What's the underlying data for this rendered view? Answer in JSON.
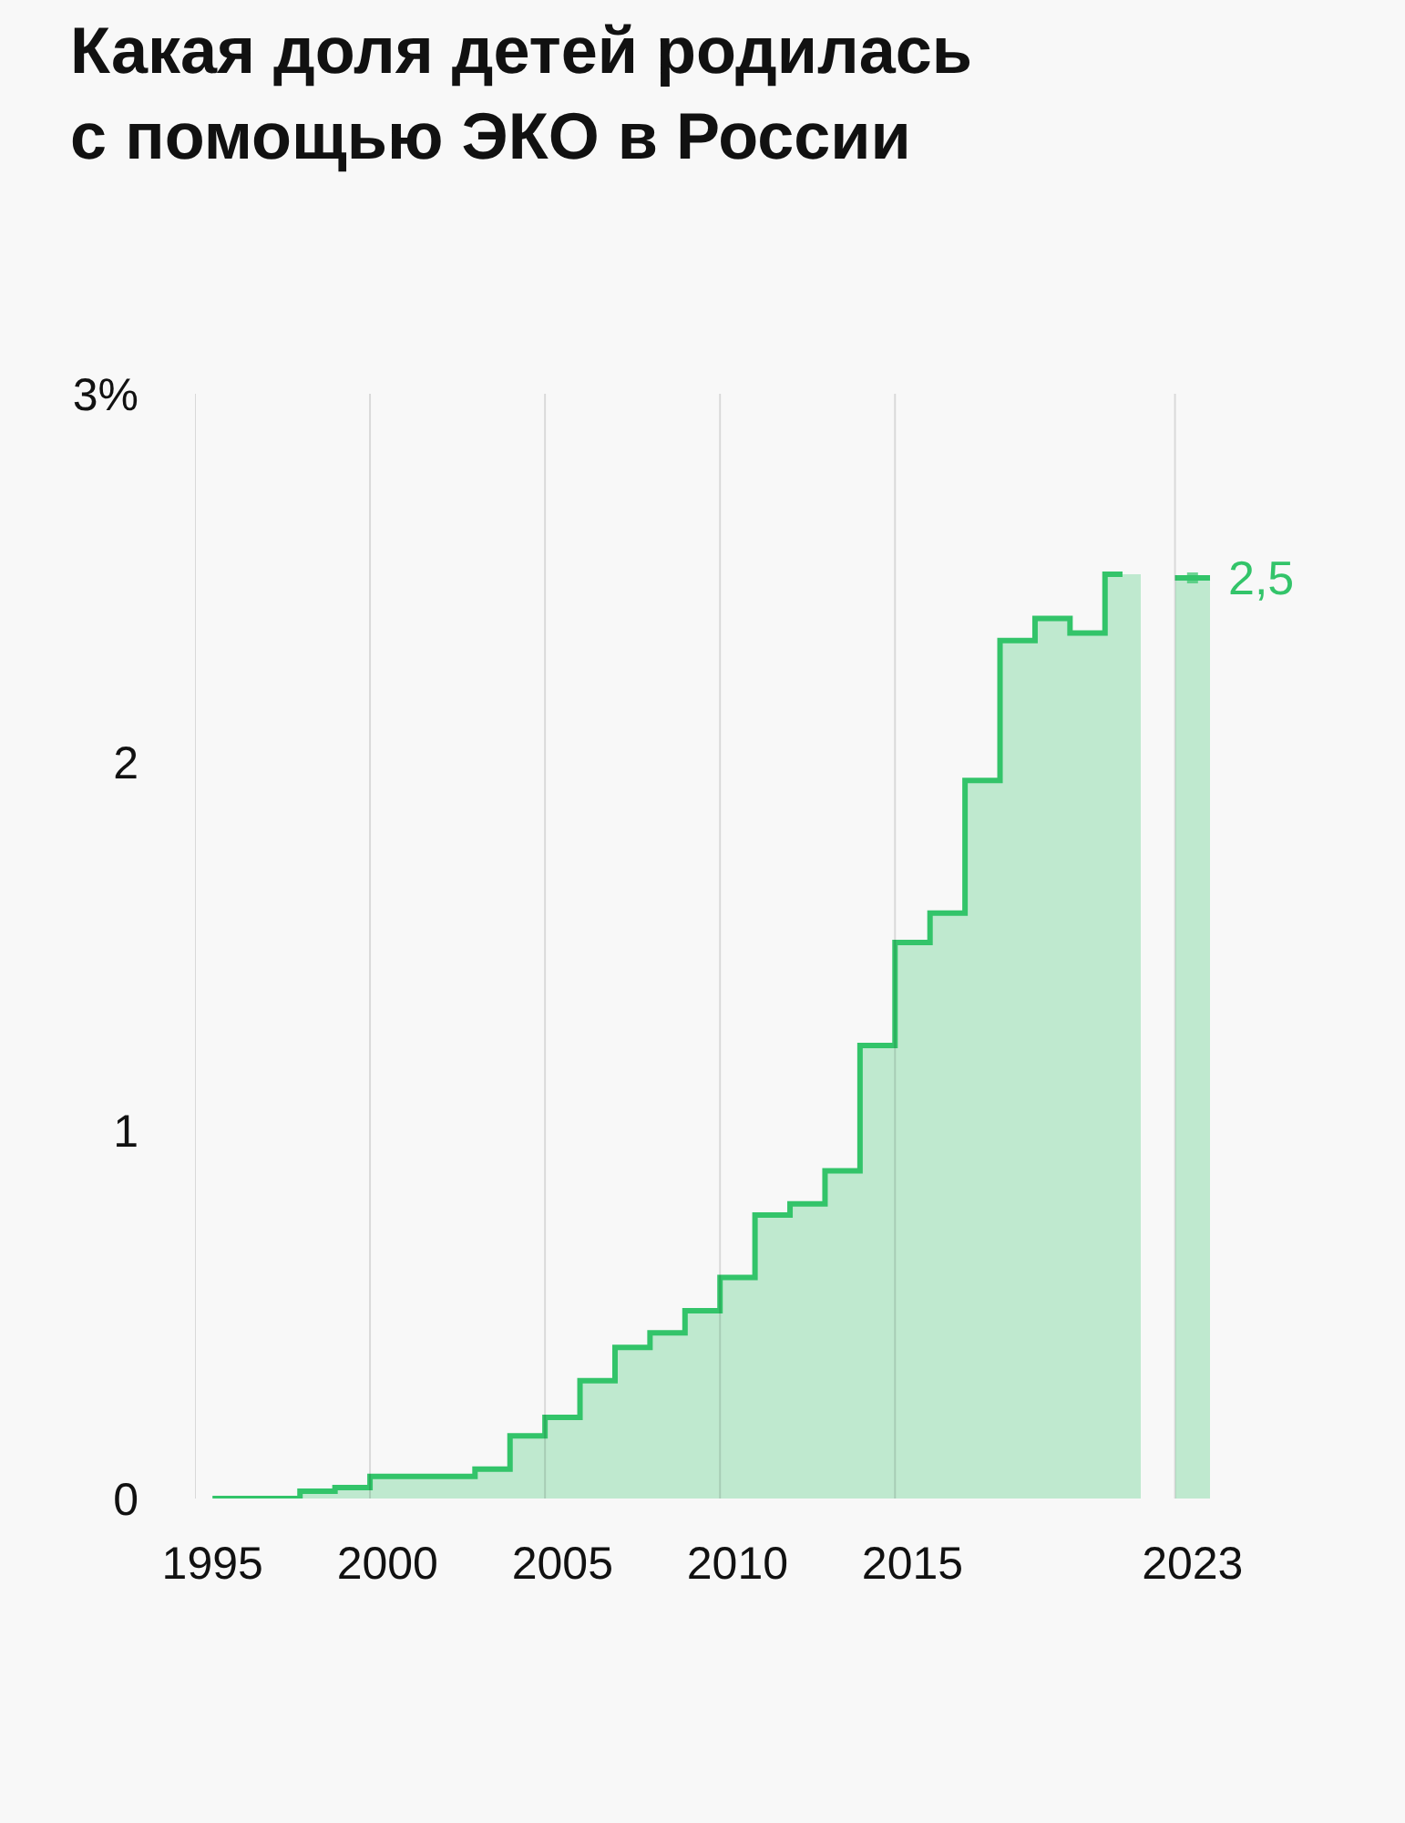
{
  "chart_data": {
    "type": "bar",
    "title": "Какая доля детей родилась\nс помощью ЭКО в России",
    "categories": [
      "1995",
      null,
      null,
      null,
      null,
      "2000",
      null,
      null,
      null,
      null,
      "2005",
      null,
      null,
      null,
      null,
      "2010",
      null,
      null,
      null,
      null,
      "2015",
      null,
      null,
      null,
      null,
      null,
      null,
      null,
      "2023"
    ],
    "series": [
      {
        "color": "#bfe9cf",
        "values": [
          0,
          0,
          0,
          0.02,
          0.03,
          0.06,
          0.06,
          0.06,
          0.08,
          0.17,
          0.22,
          0.32,
          0.41,
          0.45,
          0.51,
          0.6,
          0.77,
          0.8,
          0.89,
          1.23,
          1.51,
          1.59,
          1.95,
          2.33,
          2.39,
          2.35,
          2.51,
          null,
          2.5
        ]
      },
      {
        "type": "step",
        "color": "#33c46a",
        "values": [
          0,
          0,
          0,
          0.02,
          0.03,
          0.06,
          0.06,
          0.06,
          0.08,
          0.17,
          0.22,
          0.32,
          0.41,
          0.45,
          0.51,
          0.6,
          0.77,
          0.8,
          0.89,
          1.23,
          1.51,
          1.59,
          1.95,
          2.33,
          2.39,
          2.35,
          2.51,
          null,
          2.5
        ],
        "value_labels": [
          null,
          null,
          null,
          null,
          null,
          null,
          null,
          null,
          null,
          null,
          null,
          null,
          null,
          null,
          null,
          null,
          null,
          null,
          null,
          null,
          null,
          null,
          null,
          null,
          null,
          null,
          null,
          null,
          "2,5"
        ]
      }
    ],
    "ylim": [
      0,
      3
    ],
    "yticks": [
      0,
      1,
      2,
      {
        "value": 3,
        "label": "3%"
      }
    ],
    "grid": "x"
  }
}
